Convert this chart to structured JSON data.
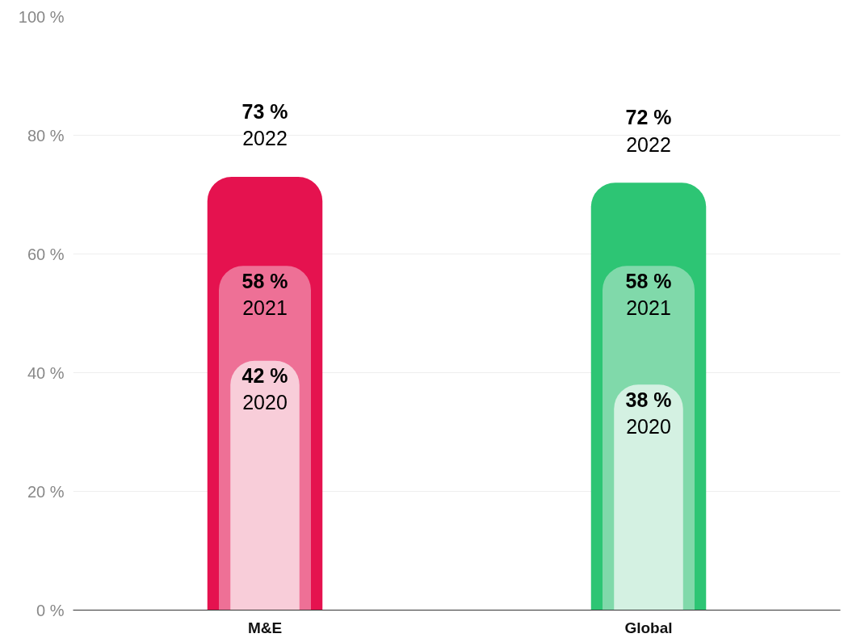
{
  "chart_data": {
    "type": "bar",
    "categories": [
      "M&E",
      "Global"
    ],
    "series": [
      {
        "name": "2020",
        "colors": [
          "#f8cdd9",
          "#d4f1e2"
        ],
        "values": [
          42,
          38
        ],
        "value_labels": [
          "42 %",
          "38 %"
        ]
      },
      {
        "name": "2021",
        "colors": [
          "#ee7096",
          "#80d9aa"
        ],
        "values": [
          58,
          58
        ],
        "value_labels": [
          "58 %",
          "58 %"
        ]
      },
      {
        "name": "2022",
        "colors": [
          "#e5124f",
          "#2dc574"
        ],
        "values": [
          73,
          72
        ],
        "value_labels": [
          "73 %",
          "72 %"
        ]
      }
    ],
    "ylim": [
      0,
      100
    ],
    "yticks": [
      {
        "value": 0,
        "label": "0 %"
      },
      {
        "value": 20,
        "label": "20 %"
      },
      {
        "value": 40,
        "label": "40 %"
      },
      {
        "value": 60,
        "label": "60 %"
      },
      {
        "value": 80,
        "label": "80 %"
      },
      {
        "value": 100,
        "label": "100 %"
      }
    ],
    "grid": "y"
  }
}
